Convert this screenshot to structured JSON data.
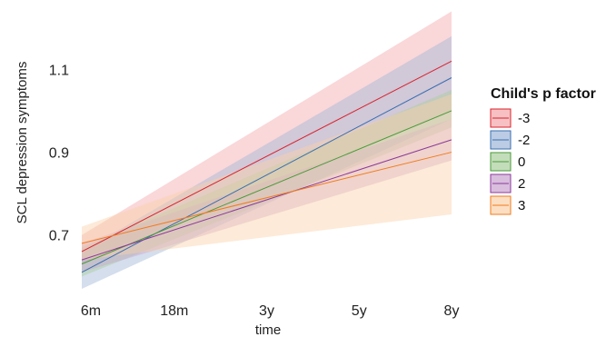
{
  "chart_data": {
    "type": "line",
    "title": "",
    "xlabel": "time",
    "ylabel": "SCL depression symptoms",
    "categories": [
      "6m",
      "18m",
      "3y",
      "5y",
      "8y"
    ],
    "yticks": [
      0.7,
      0.9,
      1.1
    ],
    "ylim": [
      0.57,
      1.25
    ],
    "grid": false,
    "legend_title": "Child's p factor",
    "legend_position": "right",
    "series": [
      {
        "name": "-3",
        "color": "#d9232d",
        "fill": "#f4a6aa",
        "start": 0.66,
        "end": 1.12,
        "ci_start": [
          0.63,
          0.7
        ],
        "ci_end": [
          1.0,
          1.24
        ]
      },
      {
        "name": "-2",
        "color": "#3a6fb0",
        "fill": "#9fb6d8",
        "start": 0.61,
        "end": 1.08,
        "ci_start": [
          0.57,
          0.66
        ],
        "ci_end": [
          0.98,
          1.18
        ]
      },
      {
        "name": "0",
        "color": "#4a9a3a",
        "fill": "#a9cf9c",
        "start": 0.63,
        "end": 1.0,
        "ci_start": [
          0.6,
          0.67
        ],
        "ci_end": [
          0.96,
          1.05
        ]
      },
      {
        "name": "2",
        "color": "#8b3a9a",
        "fill": "#c9a3d0",
        "start": 0.64,
        "end": 0.93,
        "ci_start": [
          0.61,
          0.68
        ],
        "ci_end": [
          0.88,
          0.98
        ]
      },
      {
        "name": "3",
        "color": "#f07b1f",
        "fill": "#fbd1a8",
        "start": 0.68,
        "end": 0.9,
        "ci_start": [
          0.64,
          0.72
        ],
        "ci_end": [
          0.75,
          1.04
        ]
      }
    ]
  }
}
